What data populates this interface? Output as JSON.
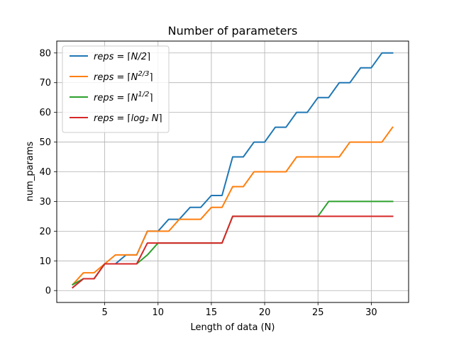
{
  "chart_data": {
    "type": "line",
    "title": "Number of parameters",
    "xlabel": "Length of data (N)",
    "ylabel": "num_params",
    "xlim": [
      0.5,
      33.5
    ],
    "ylim": [
      -4,
      84
    ],
    "xticks": [
      5,
      10,
      15,
      20,
      25,
      30
    ],
    "yticks": [
      0,
      10,
      20,
      30,
      40,
      50,
      60,
      70,
      80
    ],
    "grid": true,
    "legend_position": "top-left",
    "x": [
      2,
      3,
      4,
      5,
      6,
      7,
      8,
      9,
      10,
      11,
      12,
      13,
      14,
      15,
      16,
      17,
      18,
      19,
      20,
      21,
      22,
      23,
      24,
      25,
      26,
      27,
      28,
      29,
      30,
      31,
      32
    ],
    "series": [
      {
        "name": "reps = ⌈N/2⌉",
        "color": "#1f77b4",
        "values": [
          1,
          4,
          4,
          9,
          9,
          12,
          12,
          20,
          20,
          24,
          24,
          28,
          28,
          32,
          32,
          45,
          45,
          50,
          50,
          55,
          55,
          60,
          60,
          65,
          65,
          70,
          70,
          75,
          75,
          80,
          80
        ]
      },
      {
        "name": "reps = ⌈N^(2/3)⌉",
        "color": "#ff7f0e",
        "values": [
          2,
          6,
          6,
          9,
          12,
          12,
          12,
          20,
          20,
          20,
          24,
          24,
          24,
          28,
          28,
          35,
          35,
          40,
          40,
          40,
          40,
          45,
          45,
          45,
          45,
          45,
          50,
          50,
          50,
          50,
          55
        ]
      },
      {
        "name": "reps = ⌈N^(1/2)⌉",
        "color": "#2ca02c",
        "values": [
          2,
          4,
          4,
          9,
          9,
          9,
          9,
          12,
          16,
          16,
          16,
          16,
          16,
          16,
          16,
          25,
          25,
          25,
          25,
          25,
          25,
          25,
          25,
          25,
          30,
          30,
          30,
          30,
          30,
          30,
          30
        ]
      },
      {
        "name": "reps = ⌈log₂ N⌉",
        "color": "#d62728",
        "values": [
          1,
          4,
          4,
          9,
          9,
          9,
          9,
          16,
          16,
          16,
          16,
          16,
          16,
          16,
          16,
          25,
          25,
          25,
          25,
          25,
          25,
          25,
          25,
          25,
          25,
          25,
          25,
          25,
          25,
          25,
          25
        ]
      }
    ]
  },
  "legend_labels": [
    {
      "prefix": "reps",
      "eq": " = ",
      "open": "⌈",
      "base": "N/2",
      "sup": "",
      "close": "⌉"
    },
    {
      "prefix": "reps",
      "eq": " = ",
      "open": "⌈",
      "base": "N",
      "sup": "2/3",
      "close": "⌉"
    },
    {
      "prefix": "reps",
      "eq": " = ",
      "open": "⌈",
      "base": "N",
      "sup": "1/2",
      "close": "⌉"
    },
    {
      "prefix": "reps",
      "eq": " = ",
      "open": "⌈",
      "base": "log₂ N",
      "sup": "",
      "close": "⌉"
    }
  ]
}
